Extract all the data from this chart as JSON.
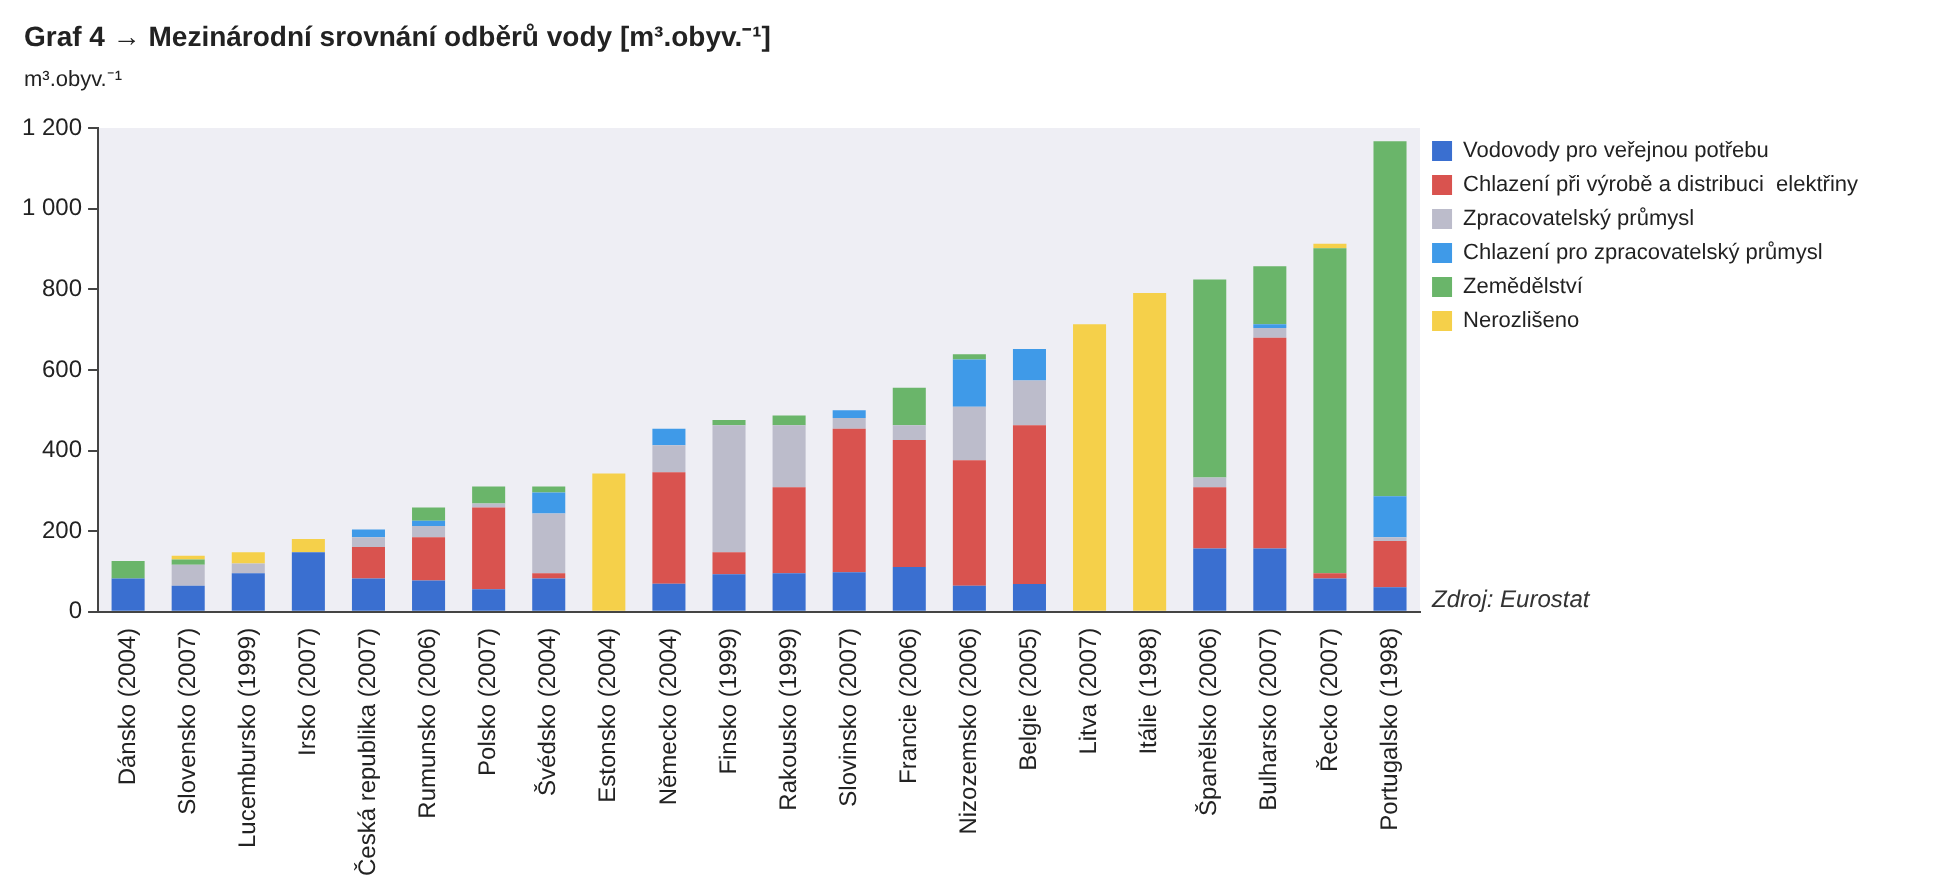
{
  "chart_data": {
    "type": "bar",
    "stacked": true,
    "title": "Graf 4 → Mezinárodní srovnání odběrů vody [m³.obyv.⁻¹]",
    "ylabel": "m³.obyv.⁻¹",
    "categories": [
      "Dánsko (2004)",
      "Slovensko (2007)",
      "Lucembursko (1999)",
      "Irsko (2007)",
      "Česká republika (2007)",
      "Rumunsko (2006)",
      "Polsko (2007)",
      "Švédsko (2004)",
      "Estonsko (2004)",
      "Německo (2004)",
      "Finsko (1999)",
      "Rakousko (1999)",
      "Slovinsko (2007)",
      "Francie (2006)",
      "Nizozemsko (2006)",
      "Belgie (2005)",
      "Litva (2007)",
      "Itálie (1998)",
      "Španělsko (2006)",
      "Bulharsko (2007)",
      "Řecko (2007)",
      "Portugalsko (1998)"
    ],
    "series": [
      {
        "name": "Vodovody pro veřejnou potřebu",
        "color": "#3a6fd0",
        "values": [
          83,
          65,
          96,
          148,
          83,
          78,
          56,
          83,
          null,
          70,
          93,
          96,
          98,
          111,
          65,
          69,
          null,
          null,
          157,
          157,
          83,
          61
        ]
      },
      {
        "name": "Chlazení při výrobě a distribuci  elektřiny",
        "color": "#d9534f",
        "values": [
          null,
          null,
          null,
          null,
          78,
          107,
          203,
          13,
          null,
          276,
          55,
          213,
          356,
          315,
          311,
          394,
          null,
          null,
          152,
          523,
          13,
          115
        ]
      },
      {
        "name": "Zpracovatelský průmysl",
        "color": "#bcbccb",
        "values": [
          null,
          52,
          24,
          null,
          24,
          28,
          10,
          148,
          null,
          67,
          315,
          154,
          27,
          37,
          133,
          111,
          null,
          null,
          24,
          24,
          null,
          9
        ]
      },
      {
        "name": "Chlazení pro zpracovatelský průmysl",
        "color": "#3f9ae8",
        "values": [
          null,
          null,
          null,
          null,
          19,
          13,
          null,
          52,
          null,
          41,
          null,
          null,
          19,
          null,
          117,
          78,
          null,
          null,
          null,
          9,
          null,
          102
        ]
      },
      {
        "name": "Zemědělství",
        "color": "#6ab56a",
        "values": [
          43,
          13,
          null,
          null,
          null,
          33,
          42,
          15,
          null,
          null,
          13,
          24,
          null,
          93,
          13,
          null,
          null,
          null,
          491,
          144,
          806,
          880
        ]
      },
      {
        "name": "Nerozlišeno",
        "color": "#f5d04a",
        "values": [
          null,
          9,
          28,
          33,
          null,
          null,
          null,
          null,
          343,
          null,
          null,
          null,
          null,
          null,
          null,
          null,
          713,
          791,
          null,
          null,
          11,
          null
        ]
      }
    ],
    "ylim": [
      0,
      1200
    ],
    "yticks": [
      0,
      200,
      400,
      600,
      800,
      {
        "value": 1000,
        "label": "1 000"
      },
      {
        "value": 1200,
        "label": "1 200"
      }
    ],
    "grid": false,
    "legend": "right",
    "annotations": [
      "Zdroj: Eurostat"
    ]
  }
}
